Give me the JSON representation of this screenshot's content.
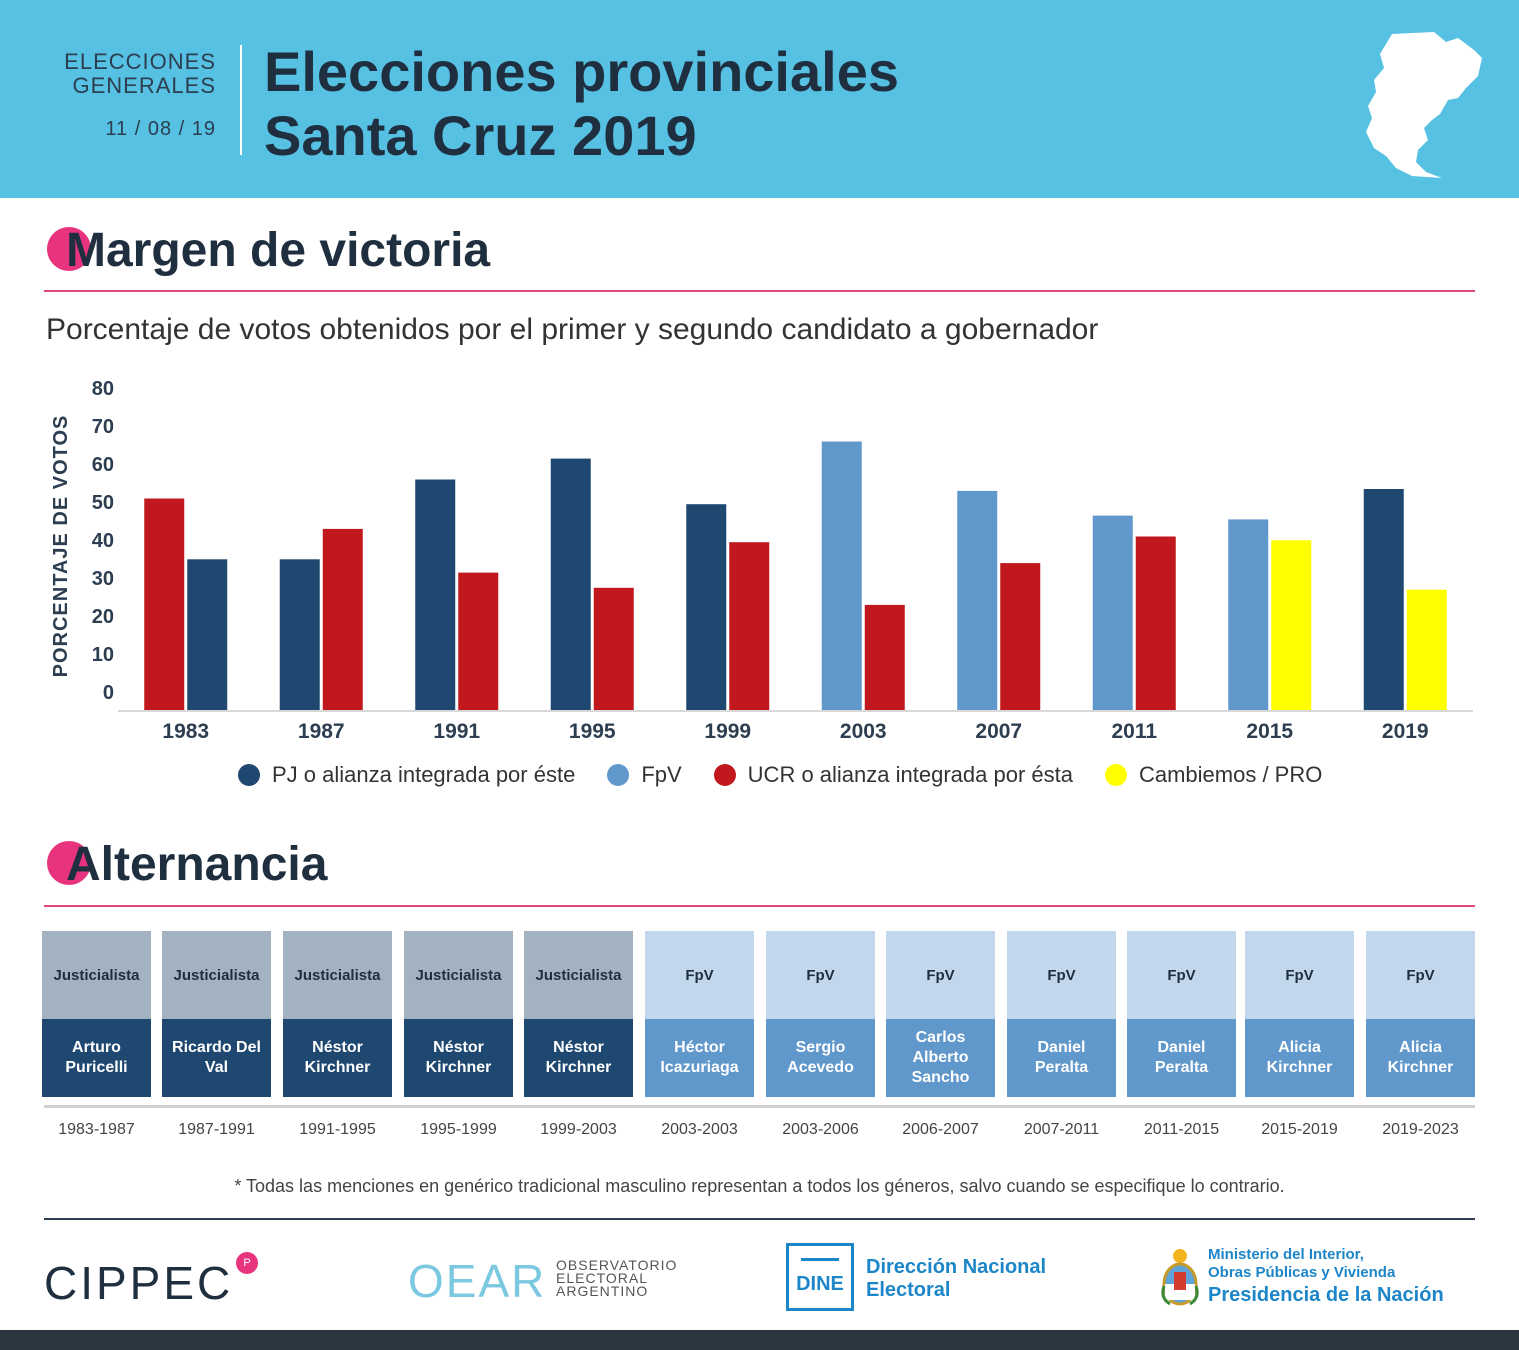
{
  "header": {
    "kicker_line1": "ELECCIONES",
    "kicker_line2": "GENERALES",
    "date": "11 / 08 / 19",
    "title_line1": "Elecciones provinciales",
    "title_line2": "Santa Cruz 2019"
  },
  "sections": {
    "margin_title": "Margen de victoria",
    "alternancia_title": "Alternancia"
  },
  "subtitle": "Porcentaje de votos obtenidos por el primer y segundo candidato a gobernador",
  "colors": {
    "PJ": "#1f4870",
    "FpV": "#6198cb",
    "UCR": "#c0181c",
    "CAMB": "#ffff00",
    "header_bg": "#56c1e2",
    "accent": "#e8347e"
  },
  "chart_data": {
    "type": "bar",
    "title": "Porcentaje de votos obtenidos por el primer y segundo candidato a gobernador",
    "xlabel": "",
    "ylabel": "PORCENTAJE DE VOTOS",
    "ylim": [
      0,
      80
    ],
    "yticks": [
      0,
      10,
      20,
      30,
      40,
      50,
      60,
      70,
      80
    ],
    "grid": false,
    "categories": [
      "1983",
      "1987",
      "1991",
      "1995",
      "1999",
      "2003",
      "2007",
      "2011",
      "2015",
      "2019"
    ],
    "series": [
      {
        "name": "Primer candidato",
        "values": [
          52.5,
          36.5,
          57.5,
          63,
          51,
          67.5,
          54.5,
          48,
          47,
          55
        ],
        "parties": [
          "UCR",
          "PJ",
          "PJ",
          "PJ",
          "PJ",
          "FpV",
          "FpV",
          "FpV",
          "FpV",
          "PJ"
        ]
      },
      {
        "name": "Segundo candidato",
        "values": [
          36.5,
          44.5,
          33,
          29,
          41,
          24.5,
          35.5,
          42.5,
          41.5,
          28.5
        ],
        "parties": [
          "PJ",
          "UCR",
          "UCR",
          "UCR",
          "UCR",
          "UCR",
          "UCR",
          "UCR",
          "CAMB",
          "CAMB"
        ]
      }
    ],
    "legend": [
      {
        "key": "PJ",
        "label": "PJ o alianza integrada por éste"
      },
      {
        "key": "FpV",
        "label": "FpV"
      },
      {
        "key": "UCR",
        "label": "UCR o alianza integrada por ésta"
      },
      {
        "key": "CAMB",
        "label": "Cambiemos / PRO"
      }
    ]
  },
  "alternancia": [
    {
      "party": "Justicialista",
      "name": "Arturo Puricelli",
      "period": "1983-1987",
      "type": "PJ"
    },
    {
      "party": "Justicialista",
      "name": "Ricardo Del Val",
      "period": "1987-1991",
      "type": "PJ"
    },
    {
      "party": "Justicialista",
      "name": "Néstor Kirchner",
      "period": "1991-1995",
      "type": "PJ"
    },
    {
      "party": "Justicialista",
      "name": "Néstor Kirchner",
      "period": "1995-1999",
      "type": "PJ"
    },
    {
      "party": "Justicialista",
      "name": "Néstor Kirchner",
      "period": "1999-2003",
      "type": "PJ"
    },
    {
      "party": "FpV",
      "name": "Héctor Icazuriaga",
      "period": "2003-2003",
      "type": "FpV"
    },
    {
      "party": "FpV",
      "name": "Sergio Acevedo",
      "period": "2003-2006",
      "type": "FpV"
    },
    {
      "party": "FpV",
      "name": "Carlos Alberto Sancho",
      "period": "2006-2007",
      "type": "FpV"
    },
    {
      "party": "FpV",
      "name": "Daniel Peralta",
      "period": "2007-2011",
      "type": "FpV"
    },
    {
      "party": "FpV",
      "name": "Daniel Peralta",
      "period": "2011-2015",
      "type": "FpV"
    },
    {
      "party": "FpV",
      "name": "Alicia Kirchner",
      "period": "2015-2019",
      "type": "FpV"
    },
    {
      "party": "FpV",
      "name": "Alicia Kirchner",
      "period": "2019-2023",
      "type": "FpV"
    }
  ],
  "footnote": "* Todas las menciones en genérico tradicional masculino representan a todos los géneros, salvo cuando se especifique lo contrario.",
  "logos": {
    "cippec": "CIPPEC",
    "cippec_badge": "P",
    "oear_mark": "OEAR",
    "oear_line1": "OBSERVATORIO",
    "oear_line2": "ELECTORAL",
    "oear_line3": "ARGENTINO",
    "dine_mark": "DINE",
    "dine_line1": "Dirección Nacional",
    "dine_line2": "Electoral",
    "min_line1": "Ministerio del Interior,",
    "min_line2": "Obras Públicas y Vivienda",
    "min_line3": "Presidencia de la Nación"
  }
}
